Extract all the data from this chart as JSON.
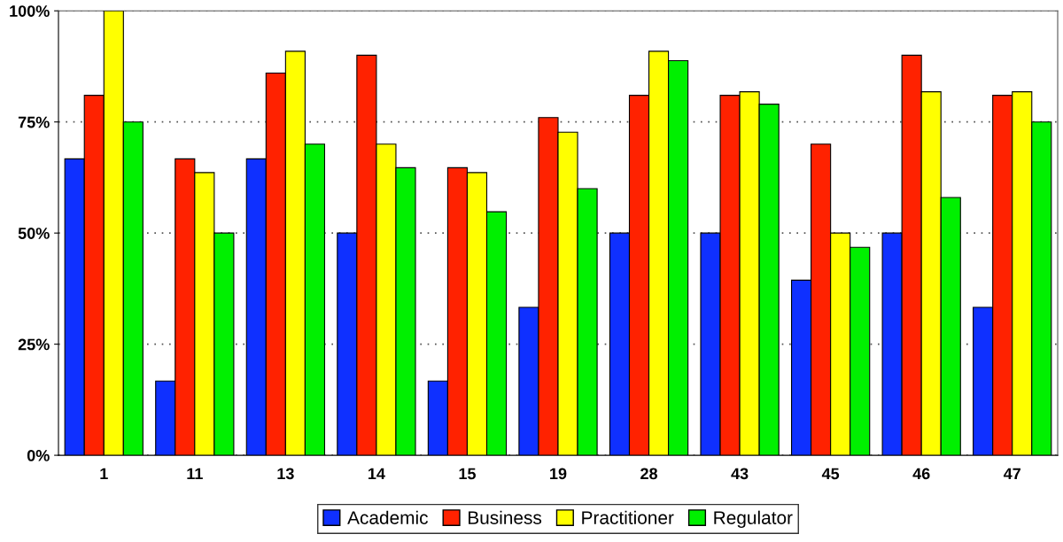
{
  "chart_data": {
    "type": "bar",
    "categories": [
      "1",
      "11",
      "13",
      "14",
      "15",
      "19",
      "28",
      "43",
      "45",
      "46",
      "47"
    ],
    "series": [
      {
        "name": "Academic",
        "color": "#0f30ff",
        "values": [
          66.7,
          16.7,
          66.7,
          50,
          16.7,
          33.3,
          50,
          50,
          39.4,
          50,
          33.3
        ]
      },
      {
        "name": "Business",
        "color": "#ff2200",
        "values": [
          81,
          66.7,
          86,
          90,
          64.7,
          76,
          81,
          81,
          70,
          90,
          81
        ]
      },
      {
        "name": "Practitioner",
        "color": "#ffff00",
        "values": [
          100,
          63.6,
          90.9,
          70,
          63.6,
          72.7,
          90.9,
          81.8,
          50,
          81.8,
          81.8
        ]
      },
      {
        "name": "Regulator",
        "color": "#00f000",
        "values": [
          75,
          50,
          70,
          64.7,
          54.8,
          60,
          88.8,
          79,
          46.8,
          58,
          75
        ]
      }
    ],
    "ylim": [
      0,
      100
    ],
    "yticks": [
      {
        "value": 0,
        "label": "0%"
      },
      {
        "value": 25,
        "label": "25%"
      },
      {
        "value": 50,
        "label": "50%"
      },
      {
        "value": 75,
        "label": "75%"
      },
      {
        "value": 100,
        "label": "100%"
      }
    ],
    "grid": "y",
    "legend": "bottom"
  }
}
